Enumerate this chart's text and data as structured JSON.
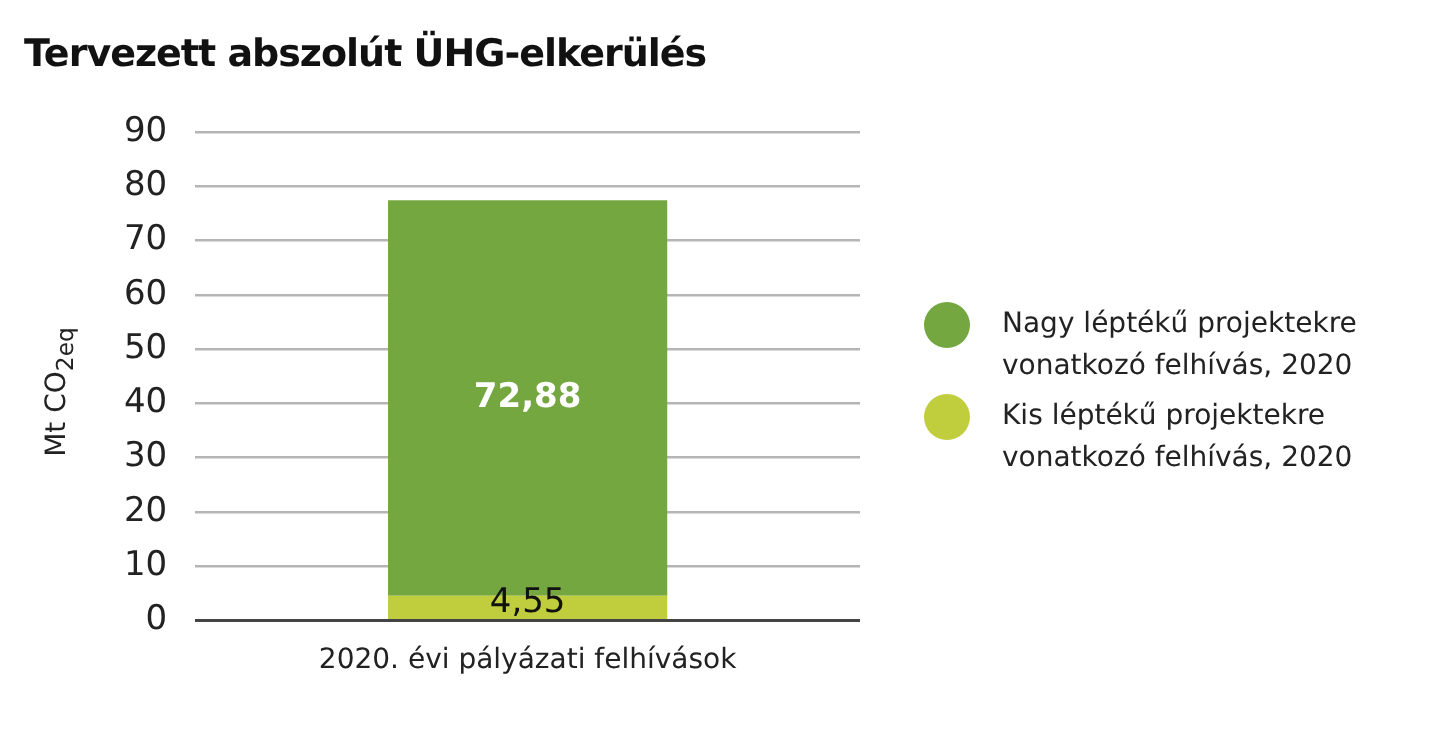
{
  "chart_data": {
    "type": "bar",
    "title": "Tervezett abszolút ÜHG-elkerülés",
    "ylabel": "Mt CO$_{2eq}$",
    "categories": [
      "2020. évi pályázati felhívások"
    ],
    "stacked": true,
    "series": [
      {
        "name": "Kis léptékű projektekre vonatkozó felhívás, 2020",
        "color": "#c0cd3c",
        "values": [
          4.55
        ],
        "value_labels": [
          "4,55"
        ]
      },
      {
        "name": "Nagy léptékű projektekre vonatkozó felhívás, 2020",
        "color": "#74a73f",
        "values": [
          72.88
        ],
        "value_labels": [
          "72,88"
        ]
      }
    ],
    "ylim": [
      0,
      90
    ],
    "yticks": [
      0,
      10,
      20,
      30,
      40,
      50,
      60,
      70,
      80,
      90
    ],
    "grid": "y",
    "legend": "right"
  }
}
